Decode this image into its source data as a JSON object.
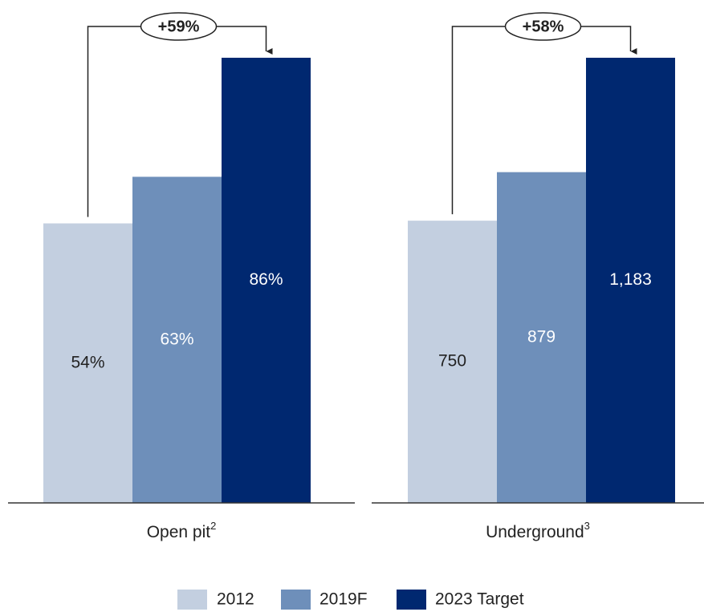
{
  "chart_data": [
    {
      "type": "bar",
      "categories": [
        "Open pit"
      ],
      "footnote": "2",
      "annotation": "+59%",
      "series": [
        {
          "name": "2012",
          "color": "#c3cfe0",
          "values": [
            54
          ],
          "value_labels": [
            "54%"
          ]
        },
        {
          "name": "2019F",
          "color": "#6e8fba",
          "values": [
            63
          ],
          "value_labels": [
            "63%"
          ]
        },
        {
          "name": "2023 Target",
          "color": "#002870",
          "values": [
            86
          ],
          "value_labels": [
            "86%"
          ]
        }
      ]
    },
    {
      "type": "bar",
      "categories": [
        "Underground"
      ],
      "footnote": "3",
      "annotation": "+58%",
      "series": [
        {
          "name": "2012",
          "color": "#c3cfe0",
          "values": [
            750
          ],
          "value_labels": [
            "750"
          ]
        },
        {
          "name": "2019F",
          "color": "#6e8fba",
          "values": [
            879
          ],
          "value_labels": [
            "879"
          ]
        },
        {
          "name": "2023 Target",
          "color": "#002870",
          "values": [
            1183
          ],
          "value_labels": [
            "1,183"
          ]
        }
      ]
    }
  ]
}
